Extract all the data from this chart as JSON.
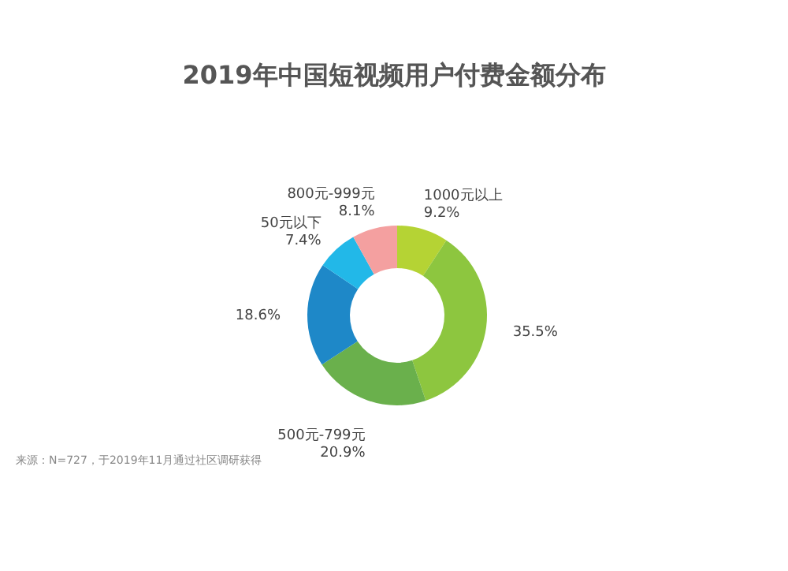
{
  "chart_data": {
    "type": "donut",
    "title": "2019年中国短视频用户付费金额分布",
    "categories": [
      "1000元以上",
      null,
      "500元-799元",
      null,
      "50元以下",
      "800元-999元"
    ],
    "values": [
      9.2,
      35.5,
      20.9,
      18.6,
      7.4,
      8.1
    ],
    "value_labels": [
      "9.2%",
      "35.5%",
      "20.9%",
      "18.6%",
      "7.4%",
      "8.1%"
    ],
    "colors": [
      "#b5d334",
      "#8dc63f",
      "#6ab04c",
      "#1e88c8",
      "#22b8e8",
      "#f4a0a0"
    ],
    "legend": false,
    "annotations": [
      "来源：N=727，于2019年11月通过社区调研获得"
    ]
  }
}
